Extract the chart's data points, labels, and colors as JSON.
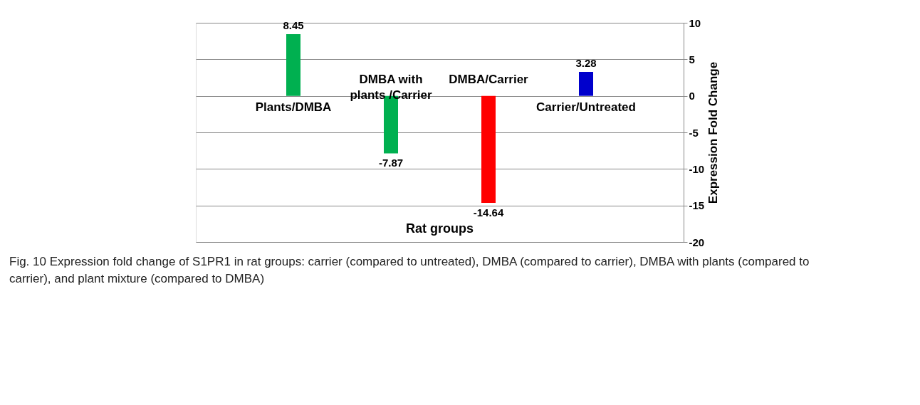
{
  "chart_data": {
    "type": "bar",
    "categories": [
      "Plants/DMBA",
      "DMBA with plants /Carrier",
      "DMBA/Carrier",
      "Carrier/Untreated"
    ],
    "values": [
      8.45,
      -7.87,
      -14.64,
      3.28
    ],
    "colors": [
      "#00b050",
      "#00b050",
      "#ff0000",
      "#0000cc"
    ],
    "xlabel": "Rat groups",
    "ylabel": "Expression Fold Change",
    "ylim": [
      -20,
      10
    ],
    "yticks": [
      -20,
      -15,
      -10,
      -5,
      0,
      5,
      10
    ],
    "grid": "y",
    "data_labels": true,
    "annotations": [
      "Fig. 10 Expression fold change of S1PR1 in rat groups: carrier (compared to untreated), DMBA (compared to carrier), DMBA with plants (compared to carrier), and plant mixture (compared to DMBA)"
    ]
  }
}
